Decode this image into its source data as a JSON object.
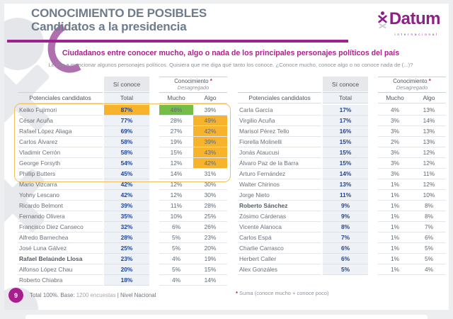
{
  "header": {
    "title_line1": "CONOCIMIENTO DE POSIBLES",
    "title_line2": "Candidatos a la presidencia",
    "brand": {
      "name": "Datum",
      "subtitle": "internacional"
    }
  },
  "intro": {
    "headline": "Ciudadanos entre conocer mucho, algo o nada de los principales personajes políticos del país",
    "subline": "Le voy a mencionar algunos personajes políticos. Quisiera que me diga qué tanto los conoce. ¿Conoce mucho, conoce algo o no conoce nada de (...)?"
  },
  "table_headers": {
    "candidates": "Potenciales candidatos",
    "si_conoce": "Sí conoce",
    "total": "Total",
    "conocimiento": "Conocimiento ",
    "asterisk": "*",
    "desagregado": "Desagregado",
    "mucho": "Mucho",
    "algo": "Algo"
  },
  "colors": {
    "accent_magenta": "#9c2390",
    "brand_purple": "#8e2189",
    "title_gray": "#6e7b8b",
    "value_navy": "#1e4496",
    "highlight_amber": "#f6b32b",
    "highlight_green": "#74be48",
    "group_outline": "#efc05e"
  },
  "chart_data": {
    "type": "table",
    "title": "Conocimiento de posibles candidatos a la presidencia",
    "columns": [
      "Potenciales candidatos",
      "Sí conoce Total",
      "Mucho",
      "Algo"
    ],
    "highlight_box_rows": {
      "from": 1,
      "to": 7,
      "table": "left"
    },
    "left_rows": [
      {
        "name": "Keiko Fujimori",
        "total": "87%",
        "mucho": "48%",
        "algo": "39%",
        "total_hl": "amber",
        "mucho_hl": "green"
      },
      {
        "name": "César Acuña",
        "total": "77%",
        "mucho": "28%",
        "algo": "49%",
        "algo_hl": "amber"
      },
      {
        "name": "Rafael López Aliaga",
        "total": "69%",
        "mucho": "27%",
        "algo": "42%",
        "algo_hl": "amber"
      },
      {
        "name": "Carlos Álvarez",
        "total": "58%",
        "mucho": "19%",
        "algo": "39%",
        "algo_hl": "amber"
      },
      {
        "name": "Vladimir Cerrón",
        "total": "58%",
        "mucho": "15%",
        "algo": "43%",
        "algo_hl": "amber"
      },
      {
        "name": "George Forsyth",
        "total": "54%",
        "mucho": "12%",
        "algo": "42%",
        "algo_hl": "amber"
      },
      {
        "name": "Phillip Butters",
        "total": "45%",
        "mucho": "14%",
        "algo": "31%"
      },
      {
        "name": "Mario Vizcarra",
        "total": "42%",
        "mucho": "12%",
        "algo": "30%"
      },
      {
        "name": "Yohny Lescano",
        "total": "42%",
        "mucho": "12%",
        "algo": "30%"
      },
      {
        "name": "Ricardo Belmont",
        "total": "39%",
        "mucho": "11%",
        "algo": "28%"
      },
      {
        "name": "Fernando Olivera",
        "total": "35%",
        "mucho": "10%",
        "algo": "25%"
      },
      {
        "name": "Francisco Diez Canseco",
        "total": "32%",
        "mucho": "6%",
        "algo": "26%"
      },
      {
        "name": "Alfredo Barnechea",
        "total": "28%",
        "mucho": "5%",
        "algo": "23%"
      },
      {
        "name": "José Luna Gálvez",
        "total": "25%",
        "mucho": "5%",
        "algo": "20%"
      },
      {
        "name": "Rafael Belaúnde Llosa",
        "total": "23%",
        "mucho": "4%",
        "algo": "19%",
        "bold": true
      },
      {
        "name": "Alfonso López Chau",
        "total": "20%",
        "mucho": "5%",
        "algo": "15%"
      },
      {
        "name": "Roberto Chiabra",
        "total": "18%",
        "mucho": "4%",
        "algo": "14%"
      }
    ],
    "right_rows": [
      {
        "name": "Carla García",
        "total": "17%",
        "mucho": "4%",
        "algo": "13%"
      },
      {
        "name": "Virgilio Acuña",
        "total": "17%",
        "mucho": "3%",
        "algo": "14%"
      },
      {
        "name": "Marisol Pérez Tello",
        "total": "16%",
        "mucho": "3%",
        "algo": "13%"
      },
      {
        "name": "Fiorella Molinelli",
        "total": "15%",
        "mucho": "2%",
        "algo": "13%"
      },
      {
        "name": "Jonás Ataucusi",
        "total": "15%",
        "mucho": "3%",
        "algo": "12%"
      },
      {
        "name": "Álvaro Paz de la Barra",
        "total": "15%",
        "mucho": "3%",
        "algo": "12%"
      },
      {
        "name": "Arturo Fernández",
        "total": "14%",
        "mucho": "3%",
        "algo": "11%"
      },
      {
        "name": "Walter Chirinos",
        "total": "13%",
        "mucho": "1%",
        "algo": "12%"
      },
      {
        "name": "Jorge Nieto",
        "total": "11%",
        "mucho": "1%",
        "algo": "10%"
      },
      {
        "name": "Roberto Sánchez",
        "total": "9%",
        "mucho": "1%",
        "algo": "8%",
        "bold": true
      },
      {
        "name": "Zósimo Cárdenas",
        "total": "9%",
        "mucho": "1%",
        "algo": "8%"
      },
      {
        "name": "Vicente Alanoca",
        "total": "8%",
        "mucho": "1%",
        "algo": "7%"
      },
      {
        "name": "Carlos Espá",
        "total": "7%",
        "mucho": "1%",
        "algo": "6%"
      },
      {
        "name": "Charlie Carrasco",
        "total": "6%",
        "mucho": "1%",
        "algo": "5%"
      },
      {
        "name": "Herbert Caller",
        "total": "6%",
        "mucho": "1%",
        "algo": "5%"
      },
      {
        "name": "Alex Gonzáles",
        "total": "5%",
        "mucho": "1%",
        "algo": "4%"
      }
    ]
  },
  "footer": {
    "page_number": "9",
    "base_prefix": "Total 100%. Base: ",
    "base_value": "1200 encuestas",
    "separator": " | ",
    "scope": "Nivel Nacional",
    "footnote_mark": "* ",
    "footnote_text": "Suma (conoce mucho + conoce poco)"
  }
}
